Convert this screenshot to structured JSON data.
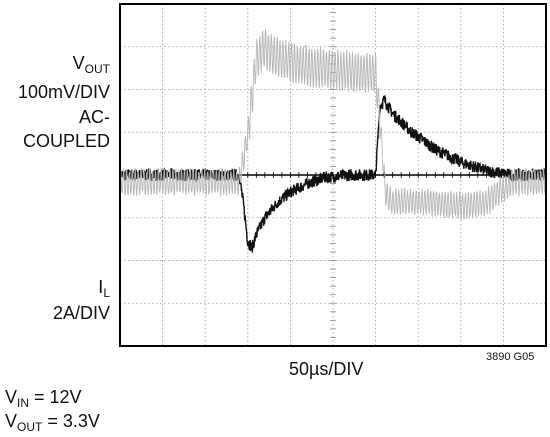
{
  "chart_data": {
    "type": "line",
    "title": "",
    "xlabel": "50µs/DIV",
    "figure_code": "3890 G05",
    "grid": true,
    "x_unit": "µs",
    "x_range": [
      0,
      500
    ],
    "channels": [
      {
        "name_main": "V",
        "name_sub": "OUT",
        "scale": "100mV/DIV",
        "coupling_1": "AC-",
        "coupling_2": "COUPLED",
        "unit": "mV",
        "y_range": [
          -200,
          200
        ],
        "color": "#111111",
        "x": [
          0,
          140,
          145,
          150,
          155,
          160,
          170,
          185,
          200,
          220,
          240,
          270,
          290,
          300,
          305,
          310,
          320,
          340,
          370,
          400,
          430,
          460,
          475,
          500
        ],
        "y": [
          0,
          0,
          -35,
          -78,
          -85,
          -70,
          -50,
          -32,
          -20,
          -10,
          -3,
          0,
          0,
          0,
          80,
          88,
          72,
          52,
          30,
          15,
          5,
          0,
          0,
          0
        ]
      },
      {
        "name_main": "I",
        "name_sub": "L",
        "scale": "2A/DIV",
        "unit": "A",
        "y_range": [
          -6,
          4
        ],
        "color": "#b5b5b5",
        "x": [
          0,
          140,
          150,
          160,
          170,
          180,
          200,
          240,
          280,
          300,
          305,
          312,
          320,
          360,
          400,
          430,
          460,
          500
        ],
        "y": [
          -1.2,
          -1.2,
          0.2,
          2.4,
          2.7,
          2.5,
          2.3,
          2.1,
          2.0,
          2.0,
          0.6,
          -1.6,
          -1.8,
          -1.8,
          -1.9,
          -1.8,
          -1.2,
          -1.2
        ]
      }
    ]
  },
  "conditions": {
    "vin_main": "V",
    "vin_sub": "IN",
    "vin_value": " = 12V",
    "vout_main": "V",
    "vout_sub": "OUT",
    "vout_value": " = 3.3V"
  }
}
